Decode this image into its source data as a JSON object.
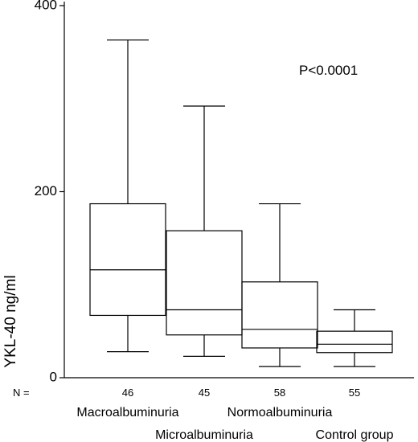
{
  "chart_data": {
    "type": "box",
    "ylabel": "YKL-40 ng/ml",
    "ylim": [
      0,
      400
    ],
    "yticks": [
      "0",
      "200",
      "400"
    ],
    "n_prefix": "N =",
    "annotation": "P<0.0001",
    "categories": [
      {
        "name": "Macroalbuminuria",
        "n": "46",
        "whisker_low": 28,
        "q1": 67,
        "median": 116,
        "q3": 187,
        "whisker_high": 363,
        "label_row": 1
      },
      {
        "name": "Microalbuminuria",
        "n": "45",
        "whisker_low": 23,
        "q1": 46,
        "median": 73,
        "q3": 158,
        "whisker_high": 292,
        "label_row": 2
      },
      {
        "name": "Normoalbuminuria",
        "n": "58",
        "whisker_low": 12,
        "q1": 32,
        "median": 52,
        "q3": 103,
        "whisker_high": 187,
        "label_row": 1
      },
      {
        "name": "Control group",
        "n": "55",
        "whisker_low": 12,
        "q1": 27,
        "median": 36,
        "q3": 50,
        "whisker_high": 73,
        "label_row": 2
      }
    ]
  }
}
